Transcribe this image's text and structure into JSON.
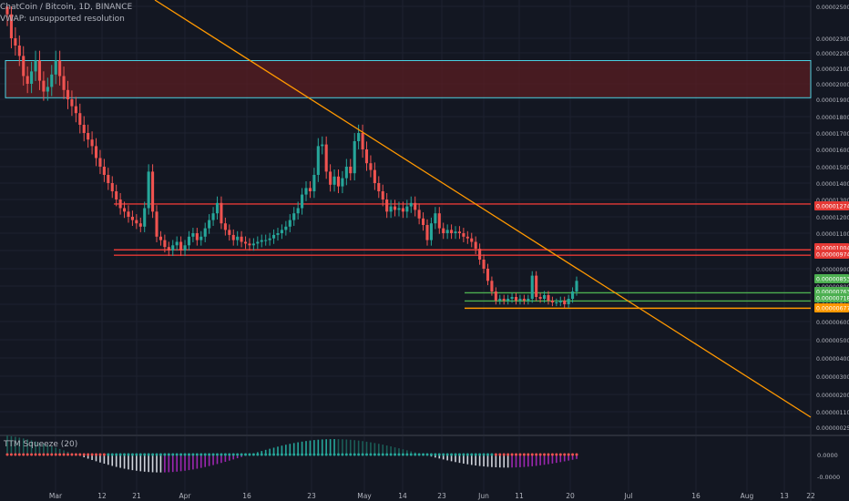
{
  "header": {
    "symbol_line": "ChatCoin / Bitcoin, 1D, BINANCE",
    "vwap_line": "VWAP: unsupported resolution"
  },
  "oscillator": {
    "label": "TTM Squeeze (20)",
    "axis_labels": [
      "0.0000",
      "-0.0000"
    ]
  },
  "colors": {
    "background": "#131722",
    "grid": "#1e2230",
    "bull": "#26a69a",
    "bear": "#ef5350",
    "trendline": "#ff9800",
    "resistance_line": "#e53935",
    "support_line": "#4caf50",
    "zone_fill": "#5a1d22",
    "zone_border": "#4dd0e1",
    "axis_text": "#b2b5be"
  },
  "chart_data": {
    "type": "candlestick",
    "x_axis_labels": [
      "Mar",
      "12",
      "21",
      "Apr",
      "16",
      "23",
      "May",
      "14",
      "23",
      "Jun",
      "11",
      "20",
      "Jul",
      "16",
      "Aug",
      "13",
      "22"
    ],
    "y_axis_labels": [
      "0.00002500",
      "0.00002300",
      "0.00002200",
      "0.00002100",
      "0.00002000",
      "0.00001900",
      "0.00001800",
      "0.00001700",
      "0.00001600",
      "0.00001500",
      "0.00001400",
      "0.00001300",
      "0.00001200",
      "0.00001100",
      "0.00001000",
      "0.00000900",
      "0.00000800",
      "0.00000700",
      "0.00000600",
      "0.00000500",
      "0.00000400",
      "0.00000300",
      "0.00000200",
      "0.00000110",
      "0.00000025"
    ],
    "y_axis_scale": "log",
    "price_tags": [
      {
        "text": "0.00001274",
        "style": "red"
      },
      {
        "text": "0.00001004",
        "style": "red"
      },
      {
        "text": "0.00000974",
        "style": "red"
      },
      {
        "text": "0.00000853",
        "style": "green"
      },
      {
        "text": "0.00000763",
        "style": "green"
      },
      {
        "text": "0.00000718",
        "style": "green"
      },
      {
        "text": "0.00000677",
        "style": "orange"
      }
    ],
    "horizontal_levels": [
      {
        "value": 1.274e-05,
        "color": "red"
      },
      {
        "value": 1.004e-05,
        "color": "red"
      },
      {
        "value": 9.74e-06,
        "color": "red"
      },
      {
        "value": 7.63e-06,
        "color": "green"
      },
      {
        "value": 7.18e-06,
        "color": "green"
      },
      {
        "value": 6.77e-06,
        "color": "orange"
      }
    ],
    "zone": {
      "top": 2.15e-05,
      "bottom": 1.91e-05
    },
    "trendline": {
      "from": [
        0,
        2.6e-05
      ],
      "to": [
        175,
        1.2e-06
      ]
    },
    "candle_closes": [
      24.5,
      23.0,
      22.5,
      21.8,
      20.5,
      20.0,
      20.8,
      21.5,
      20.2,
      19.5,
      19.8,
      20.6,
      21.5,
      20.5,
      19.6,
      19.0,
      18.6,
      18.2,
      17.5,
      17.0,
      16.6,
      16.2,
      15.5,
      15.0,
      14.5,
      14.0,
      13.5,
      13.0,
      12.5,
      12.3,
      12.0,
      11.8,
      11.6,
      11.4,
      12.5,
      14.7,
      12.3,
      10.8,
      10.6,
      10.2,
      10.0,
      10.3,
      10.5,
      10.0,
      10.3,
      10.8,
      11.0,
      10.6,
      10.8,
      11.3,
      11.8,
      12.2,
      12.8,
      11.6,
      11.2,
      10.9,
      10.6,
      10.8,
      10.5,
      10.4,
      10.3,
      10.4,
      10.5,
      10.6,
      10.6,
      10.7,
      10.9,
      11.0,
      11.2,
      11.4,
      11.8,
      12.2,
      12.5,
      13.3,
      13.7,
      13.5,
      14.5,
      16.2,
      16.3,
      14.7,
      13.9,
      14.4,
      13.8,
      14.3,
      15.0,
      14.6,
      16.5,
      17.0,
      16.0,
      15.2,
      14.8,
      14.0,
      13.5,
      13.0,
      12.3,
      12.6,
      12.4,
      12.5,
      12.3,
      12.6,
      12.8,
      12.4,
      11.9,
      11.5,
      10.6,
      11.6,
      12.2,
      11.3,
      11.0,
      11.2,
      11.0,
      11.1,
      11.0,
      10.8,
      10.7,
      10.5,
      10.1,
      9.5,
      9.0,
      8.3,
      7.7,
      7.2,
      7.3,
      7.2,
      7.3,
      7.4,
      7.2,
      7.3,
      7.2,
      7.3,
      8.6,
      7.4,
      7.3,
      7.5,
      7.2,
      7.1,
      7.1,
      7.2,
      7.0,
      7.3,
      7.7,
      8.3
    ]
  }
}
